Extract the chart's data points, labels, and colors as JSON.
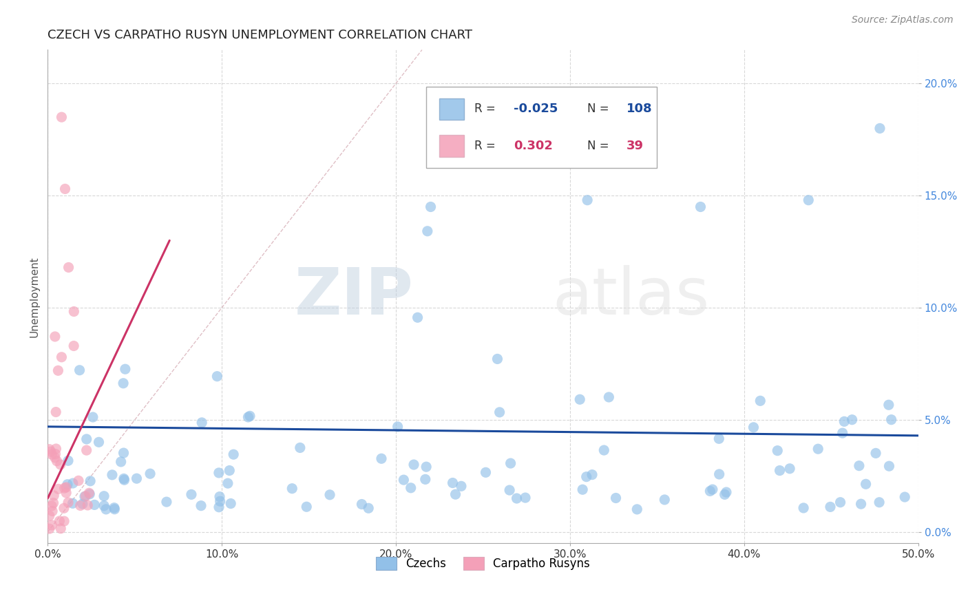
{
  "title": "CZECH VS CARPATHO RUSYN UNEMPLOYMENT CORRELATION CHART",
  "source_text": "Source: ZipAtlas.com",
  "ylabel": "Unemployment",
  "xlim": [
    0.0,
    0.5
  ],
  "ylim": [
    -0.005,
    0.215
  ],
  "xticks": [
    0.0,
    0.1,
    0.2,
    0.3,
    0.4,
    0.5
  ],
  "xticklabels": [
    "0.0%",
    "10.0%",
    "20.0%",
    "30.0%",
    "40.0%",
    "50.0%"
  ],
  "yticks": [
    0.0,
    0.05,
    0.1,
    0.15,
    0.2
  ],
  "yticklabels": [
    "0.0%",
    "5.0%",
    "10.0%",
    "15.0%",
    "20.0%"
  ],
  "czech_color": "#92C0E8",
  "rusyn_color": "#F4A0B8",
  "czech_line_color": "#1A4A9C",
  "rusyn_line_color": "#CC3366",
  "diag_line_color": "#D8B0B8",
  "legend_czech_R": "-0.025",
  "legend_czech_N": "108",
  "legend_rusyn_R": "0.302",
  "legend_rusyn_N": "39",
  "watermark_zip": "ZIP",
  "watermark_atlas": "atlas",
  "background_color": "#ffffff",
  "grid_color": "#d8d8d8",
  "title_fontsize": 13,
  "tick_fontsize": 11,
  "ylabel_fontsize": 11,
  "source_fontsize": 10
}
